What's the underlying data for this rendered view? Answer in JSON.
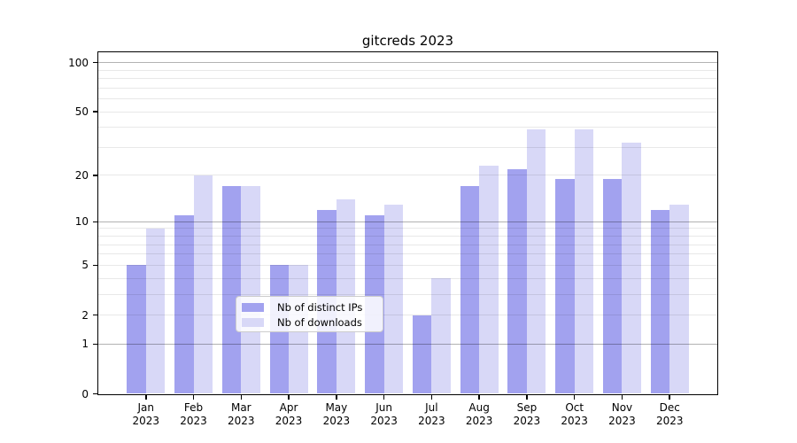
{
  "chart_data": {
    "type": "bar",
    "title": "gitcreds 2023",
    "categories": [
      "Jan",
      "Feb",
      "Mar",
      "Apr",
      "May",
      "Jun",
      "Jul",
      "Aug",
      "Sep",
      "Oct",
      "Nov",
      "Dec"
    ],
    "x_year_label": "2023",
    "series": [
      {
        "name": "Nb of distinct IPs",
        "color": "#a2a2ef",
        "values": [
          5,
          11,
          17,
          5,
          12,
          11,
          2,
          17,
          22,
          19,
          19,
          12
        ]
      },
      {
        "name": "Nb of downloads",
        "color": "#d8d8f7",
        "values": [
          9,
          20,
          17,
          5,
          14,
          13,
          4,
          23,
          39,
          39,
          32,
          13
        ]
      }
    ],
    "y_axis": {
      "scale": "log1p",
      "tick_values": [
        0,
        1,
        2,
        5,
        10,
        20,
        50,
        100
      ],
      "tick_labels": [
        "0",
        "1",
        "2",
        "5",
        "10",
        "20",
        "50",
        "100"
      ],
      "major_gridlines": [
        1,
        10,
        100
      ],
      "minor_gridlines": [
        2,
        3,
        4,
        5,
        6,
        7,
        8,
        9,
        20,
        30,
        40,
        50,
        60,
        70,
        80,
        90
      ],
      "range": [
        0,
        117
      ]
    },
    "legend": {
      "position": "lower center"
    },
    "grid": true,
    "colors": {
      "major_grid": "#b3b3b3",
      "minor_grid": "#e8e8e8",
      "axis": "#000000",
      "legend_border": "#cccccc",
      "legend_background": "#ffffff"
    }
  }
}
